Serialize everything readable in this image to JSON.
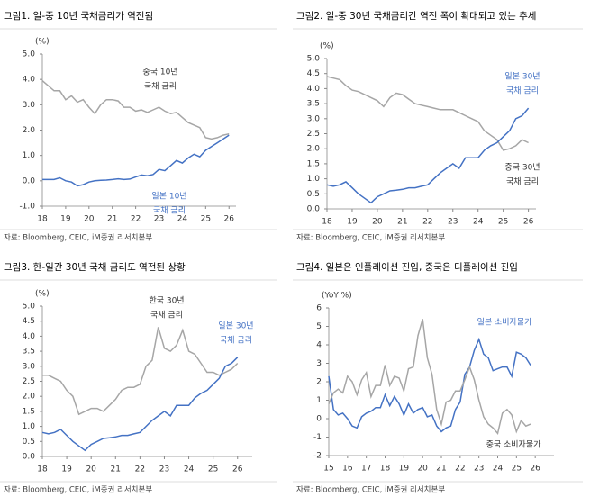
{
  "chart_data": [
    {
      "type": "line",
      "title": "그림1.  일-중 10년 국채금리가 역전됨",
      "unit": "(%)",
      "source": "자료: Bloomberg, CEIC, iM증권 리서치본부",
      "x": [
        18,
        18.25,
        18.5,
        18.75,
        19,
        19.25,
        19.5,
        19.75,
        20,
        20.25,
        20.5,
        20.75,
        21,
        21.25,
        21.5,
        21.75,
        22,
        22.25,
        22.5,
        22.75,
        23,
        23.25,
        23.5,
        23.75,
        24,
        24.25,
        24.5,
        24.75,
        25,
        25.25,
        25.5,
        25.75,
        26
      ],
      "xlim": [
        18,
        26.3
      ],
      "xticks": [
        18,
        19,
        20,
        21,
        22,
        23,
        24,
        25,
        26
      ],
      "ylim": [
        -1,
        5
      ],
      "yticks": [
        {
          "value": -1,
          "label": "-1.0"
        },
        {
          "value": 0,
          "label": "0.0"
        },
        {
          "value": 1,
          "label": "1.0"
        },
        {
          "value": 2,
          "label": "2.0"
        },
        {
          "value": 3,
          "label": "3.0"
        },
        {
          "value": 4,
          "label": "4.0"
        },
        {
          "value": 5,
          "label": "5.0"
        }
      ],
      "series": [
        {
          "label": [
            "중국 10년",
            "국채 금리"
          ],
          "color": "#a6a6a6",
          "values": [
            3.95,
            3.75,
            3.55,
            3.55,
            3.2,
            3.35,
            3.1,
            3.2,
            2.9,
            2.65,
            3.0,
            3.2,
            3.2,
            3.15,
            2.9,
            2.9,
            2.75,
            2.8,
            2.7,
            2.8,
            2.9,
            2.75,
            2.65,
            2.7,
            2.5,
            2.3,
            2.2,
            2.1,
            1.7,
            1.65,
            1.7,
            1.8,
            1.85
          ]
        },
        {
          "label": [
            "일본 10년",
            "국채 금리"
          ],
          "color": "#4472c4",
          "values": [
            0.05,
            0.05,
            0.05,
            0.12,
            0.0,
            -0.05,
            -0.2,
            -0.15,
            -0.05,
            0.0,
            0.02,
            0.03,
            0.05,
            0.08,
            0.05,
            0.07,
            0.15,
            0.23,
            0.2,
            0.25,
            0.45,
            0.4,
            0.6,
            0.8,
            0.7,
            0.9,
            1.05,
            0.95,
            1.2,
            1.35,
            1.5,
            1.65,
            1.8
          ]
        }
      ]
    },
    {
      "type": "line",
      "title": "그림2.  일-중 30년 국채금리간 역전 폭이 확대되고 있는 추세",
      "unit": "(%)",
      "source": "자료: Bloomberg, CEIC, iM증권 리서치본부",
      "x": [
        18,
        18.25,
        18.5,
        18.75,
        19,
        19.25,
        19.5,
        19.75,
        20,
        20.25,
        20.5,
        20.75,
        21,
        21.25,
        21.5,
        21.75,
        22,
        22.25,
        22.5,
        22.75,
        23,
        23.25,
        23.5,
        23.75,
        24,
        24.25,
        24.5,
        24.75,
        25,
        25.25,
        25.5,
        25.75,
        26
      ],
      "xlim": [
        18,
        26.3
      ],
      "xticks": [
        18,
        19,
        20,
        21,
        22,
        23,
        24,
        25,
        26
      ],
      "ylim": [
        0,
        5
      ],
      "yticks": [
        {
          "value": 0,
          "label": "0.0"
        },
        0.5,
        {
          "value": 1,
          "label": "1.0"
        },
        1.5,
        {
          "value": 2,
          "label": "2.0"
        },
        2.5,
        {
          "value": 3,
          "label": "3.0"
        },
        3.5,
        {
          "value": 4,
          "label": "4.0"
        },
        4.5,
        {
          "value": 5,
          "label": "5.0"
        }
      ],
      "series": [
        {
          "label": [
            "중국 30년",
            "국채 금리"
          ],
          "color": "#a6a6a6",
          "values": [
            4.4,
            4.35,
            4.3,
            4.1,
            3.95,
            3.9,
            3.8,
            3.7,
            3.6,
            3.4,
            3.7,
            3.85,
            3.8,
            3.65,
            3.5,
            3.45,
            3.4,
            3.35,
            3.3,
            3.3,
            3.3,
            3.2,
            3.1,
            3.0,
            2.9,
            2.6,
            2.45,
            2.3,
            1.95,
            2.0,
            2.1,
            2.3,
            2.2
          ]
        },
        {
          "label": [
            "일본 30년",
            "국채 금리"
          ],
          "color": "#4472c4",
          "values": [
            0.8,
            0.75,
            0.8,
            0.9,
            0.7,
            0.5,
            0.35,
            0.2,
            0.4,
            0.5,
            0.6,
            0.62,
            0.65,
            0.7,
            0.7,
            0.75,
            0.8,
            1.0,
            1.2,
            1.35,
            1.5,
            1.35,
            1.7,
            1.7,
            1.7,
            1.95,
            2.1,
            2.2,
            2.4,
            2.6,
            3.0,
            3.1,
            3.35
          ]
        }
      ]
    },
    {
      "type": "line",
      "title": "그림3.  한-일간 30년 국채 금리도 역전된 상황",
      "unit": "(%)",
      "source": "자료: Bloomberg, CEIC, iM증권 리서치본부",
      "x": [
        18,
        18.25,
        18.5,
        18.75,
        19,
        19.25,
        19.5,
        19.75,
        20,
        20.25,
        20.5,
        20.75,
        21,
        21.25,
        21.5,
        21.75,
        22,
        22.25,
        22.5,
        22.75,
        23,
        23.25,
        23.5,
        23.75,
        24,
        24.25,
        24.5,
        24.75,
        25,
        25.25,
        25.5,
        25.75,
        26
      ],
      "xlim": [
        18,
        26.6
      ],
      "xticks": [
        18,
        19,
        20,
        21,
        22,
        23,
        24,
        25,
        26
      ],
      "ylim": [
        0,
        5
      ],
      "yticks": [
        {
          "value": 0,
          "label": "0.0"
        },
        0.5,
        {
          "value": 1,
          "label": "1.0"
        },
        1.5,
        {
          "value": 2,
          "label": "2.0"
        },
        2.5,
        {
          "value": 3,
          "label": "3.0"
        },
        3.5,
        {
          "value": 4,
          "label": "4.0"
        },
        4.5,
        {
          "value": 5,
          "label": "5.0"
        }
      ],
      "series": [
        {
          "label": [
            "한국 30년",
            "국채 금리"
          ],
          "color": "#a6a6a6",
          "values": [
            2.7,
            2.7,
            2.6,
            2.5,
            2.2,
            2.0,
            1.4,
            1.5,
            1.6,
            1.6,
            1.5,
            1.7,
            1.9,
            2.2,
            2.3,
            2.3,
            2.4,
            3.0,
            3.2,
            4.3,
            3.6,
            3.5,
            3.7,
            4.2,
            3.5,
            3.4,
            3.1,
            2.8,
            2.8,
            2.7,
            2.8,
            2.9,
            3.1
          ]
        },
        {
          "label": [
            "일본 30년",
            "국채 금리"
          ],
          "color": "#4472c4",
          "values": [
            0.8,
            0.75,
            0.8,
            0.9,
            0.7,
            0.5,
            0.35,
            0.2,
            0.4,
            0.5,
            0.6,
            0.62,
            0.65,
            0.7,
            0.7,
            0.75,
            0.8,
            1.0,
            1.2,
            1.35,
            1.5,
            1.35,
            1.7,
            1.7,
            1.7,
            1.95,
            2.1,
            2.2,
            2.4,
            2.6,
            3.0,
            3.1,
            3.3
          ]
        }
      ]
    },
    {
      "type": "line",
      "title": "그림4.  일본은 인플레이션 진입, 중국은 디플레이션 진입",
      "unit": "(YoY %)",
      "source": "자료: Bloomberg, CEIC, iM증권 리서치본부",
      "x": [
        15,
        15.25,
        15.5,
        15.75,
        16,
        16.25,
        16.5,
        16.75,
        17,
        17.25,
        17.5,
        17.75,
        18,
        18.25,
        18.5,
        18.75,
        19,
        19.25,
        19.5,
        19.75,
        20,
        20.25,
        20.5,
        20.75,
        21,
        21.25,
        21.5,
        21.75,
        22,
        22.25,
        22.5,
        22.75,
        23,
        23.25,
        23.5,
        23.75,
        24,
        24.25,
        24.5,
        24.75,
        25,
        25.25,
        25.5,
        25.75
      ],
      "xlim": [
        15,
        27
      ],
      "xticks": [
        15,
        16,
        17,
        18,
        19,
        20,
        21,
        22,
        23,
        24,
        25,
        26
      ],
      "ylim": [
        -2,
        6
      ],
      "yticks": [
        -2,
        -1,
        0,
        1,
        2,
        3,
        4,
        5,
        6
      ],
      "series": [
        {
          "label": [
            "일본 소비자물가"
          ],
          "color": "#4472c4",
          "values": [
            2.3,
            0.5,
            0.2,
            0.3,
            0.0,
            -0.4,
            -0.5,
            0.1,
            0.3,
            0.4,
            0.6,
            0.6,
            1.3,
            0.7,
            1.2,
            0.8,
            0.2,
            0.8,
            0.3,
            0.5,
            0.6,
            0.1,
            0.2,
            -0.4,
            -0.7,
            -0.5,
            -0.4,
            0.5,
            0.9,
            2.4,
            2.8,
            3.7,
            4.3,
            3.5,
            3.3,
            2.6,
            2.7,
            2.8,
            2.8,
            2.3,
            3.6,
            3.5,
            3.3,
            2.9
          ]
        },
        {
          "label": [
            "중국 소비자물가"
          ],
          "color": "#a6a6a6",
          "values": [
            0.8,
            1.4,
            1.6,
            1.4,
            2.3,
            2.0,
            1.3,
            2.1,
            2.5,
            1.2,
            1.8,
            1.8,
            2.9,
            1.8,
            2.3,
            2.2,
            1.5,
            2.7,
            2.8,
            4.5,
            5.4,
            3.3,
            2.4,
            0.5,
            -0.3,
            0.9,
            1.0,
            1.5,
            1.5,
            2.1,
            2.8,
            2.1,
            1.0,
            0.1,
            -0.3,
            -0.5,
            -0.8,
            0.3,
            0.5,
            0.2,
            -0.7,
            -0.1,
            -0.4,
            -0.3
          ]
        }
      ]
    }
  ]
}
